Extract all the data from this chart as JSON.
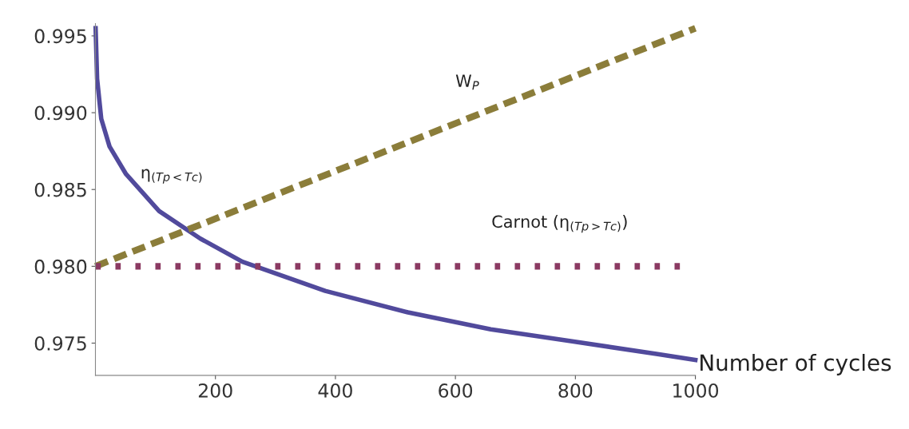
{
  "chart_data": {
    "type": "line",
    "xlabel": "Number of cycles",
    "xlim": [
      0,
      1000
    ],
    "ylim": [
      0.9729,
      0.9958
    ],
    "xticks": [
      200,
      400,
      600,
      800,
      1000
    ],
    "yticks": [
      0.975,
      {
        "value": 0.98,
        "label": "0.980"
      },
      0.985,
      {
        "value": 0.99,
        "label": "0.990"
      },
      0.995
    ],
    "grid": false,
    "legend": false,
    "series": [
      {
        "color": "#514a9c",
        "line_style": "solid",
        "x": [
          0.3,
          2.8,
          9.7,
          23.5,
          51,
          106,
          175,
          245,
          383,
          521,
          659,
          797,
          935,
          1000
        ],
        "values": [
          0.9955,
          0.9922,
          0.9896,
          0.9878,
          0.986,
          0.9836,
          0.9818,
          0.9803,
          0.9784,
          0.977,
          0.9759,
          0.9751,
          0.9743,
          0.9739
        ]
      },
      {
        "color": "#8b7d3a",
        "line_style": "dashed",
        "x": [
          0,
          1000
        ],
        "values": [
          0.98,
          0.9955
        ]
      },
      {
        "color": "#8b3a62",
        "line_style": "dotted",
        "x": [
          0,
          980
        ],
        "values": [
          0.98,
          0.98
        ]
      }
    ],
    "annotations": [
      "W$_{P}$",
      "η$_{(Tp<Tc)}$",
      "Carnot (η$_{(Tp>Tc)}$)"
    ]
  }
}
